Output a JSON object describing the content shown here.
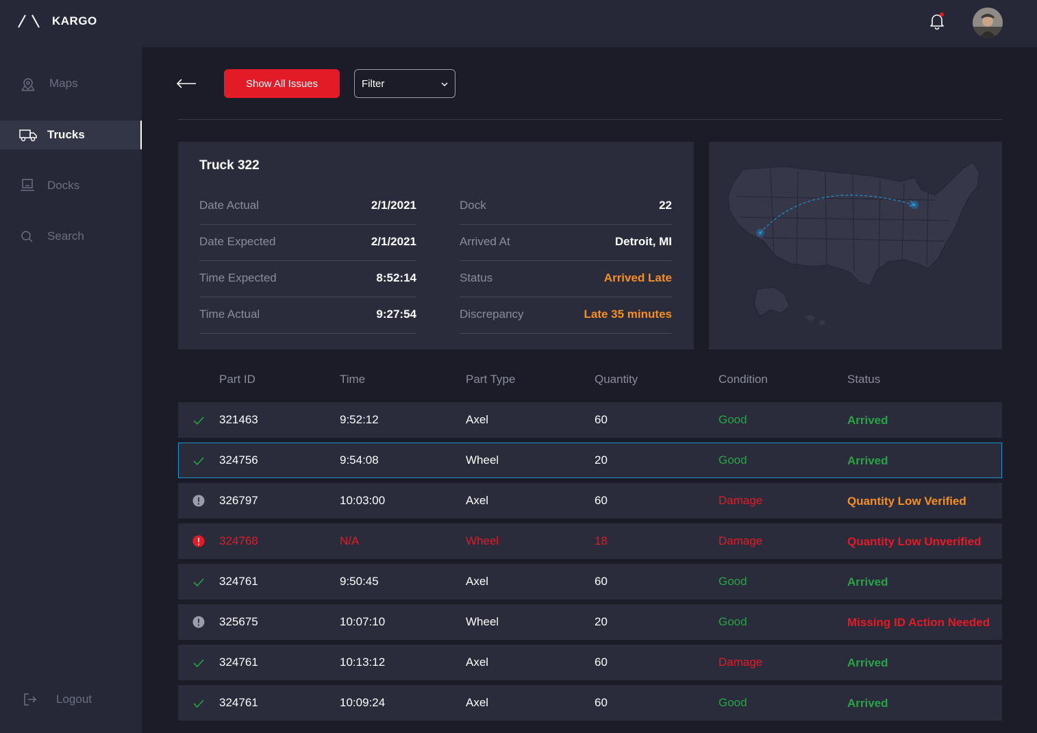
{
  "app": {
    "name": "KARGO"
  },
  "sidebar": {
    "items": [
      {
        "label": "Maps",
        "icon": "map-pin-icon",
        "active": false
      },
      {
        "label": "Trucks",
        "icon": "truck-icon",
        "active": true
      },
      {
        "label": "Docks",
        "icon": "dock-icon",
        "active": false
      },
      {
        "label": "Search",
        "icon": "search-icon",
        "active": false
      }
    ],
    "logout_label": "Logout"
  },
  "toolbar": {
    "show_all_label": "Show All Issues",
    "filter_label": "Filter"
  },
  "truck": {
    "title": "Truck 322",
    "left": [
      {
        "key": "Date Actual",
        "value": "2/1/2021"
      },
      {
        "key": "Date Expected",
        "value": "2/1/2021"
      },
      {
        "key": "Time Expected",
        "value": "8:52:14"
      },
      {
        "key": "Time Actual",
        "value": "9:27:54"
      }
    ],
    "right": [
      {
        "key": "Dock",
        "value": "22"
      },
      {
        "key": "Arrived At",
        "value": "Detroit, MI"
      },
      {
        "key": "Status",
        "value": "Arrived Late"
      },
      {
        "key": "Discrepancy",
        "value": "Late 35 minutes"
      }
    ]
  },
  "table": {
    "headers": [
      "Part ID",
      "Time",
      "Part Type",
      "Quantity",
      "Condition",
      "Status"
    ],
    "rows": [
      {
        "id": "321463",
        "time": "9:52:12",
        "type": "Axel",
        "qty": "60",
        "condition": "Good",
        "status": "Arrived",
        "icon": "check-icon"
      },
      {
        "id": "324756",
        "time": "9:54:08",
        "type": "Wheel",
        "qty": "20",
        "condition": "Good",
        "status": "Arrived",
        "icon": "check-icon"
      },
      {
        "id": "326797",
        "time": "10:03:00",
        "type": "Axel",
        "qty": "60",
        "condition": "Damage",
        "status": "Quantity Low Verified",
        "icon": "info-gray-icon"
      },
      {
        "id": "324768",
        "time": "N/A",
        "type": "Wheel",
        "qty": "18",
        "condition": "Damage",
        "status": "Quantity Low Unverified",
        "icon": "alert-red-icon"
      },
      {
        "id": "324761",
        "time": "9:50:45",
        "type": "Axel",
        "qty": "60",
        "condition": "Good",
        "status": "Arrived",
        "icon": "check-icon"
      },
      {
        "id": "325675",
        "time": "10:07:10",
        "type": "Wheel",
        "qty": "20",
        "condition": "Good",
        "status": "Missing ID Action Needed",
        "icon": "info-gray-icon"
      },
      {
        "id": "324761",
        "time": "10:13:12",
        "type": "Axel",
        "qty": "60",
        "condition": "Damage",
        "status": "Arrived",
        "icon": "check-icon"
      },
      {
        "id": "324761",
        "time": "10:09:24",
        "type": "Axel",
        "qty": "60",
        "condition": "Good",
        "status": "Arrived",
        "icon": "check-icon"
      }
    ]
  },
  "colors": {
    "accent": "#e21b26",
    "good": "#25a544",
    "warning": "#f7901e",
    "selected": "#1f95d3"
  }
}
